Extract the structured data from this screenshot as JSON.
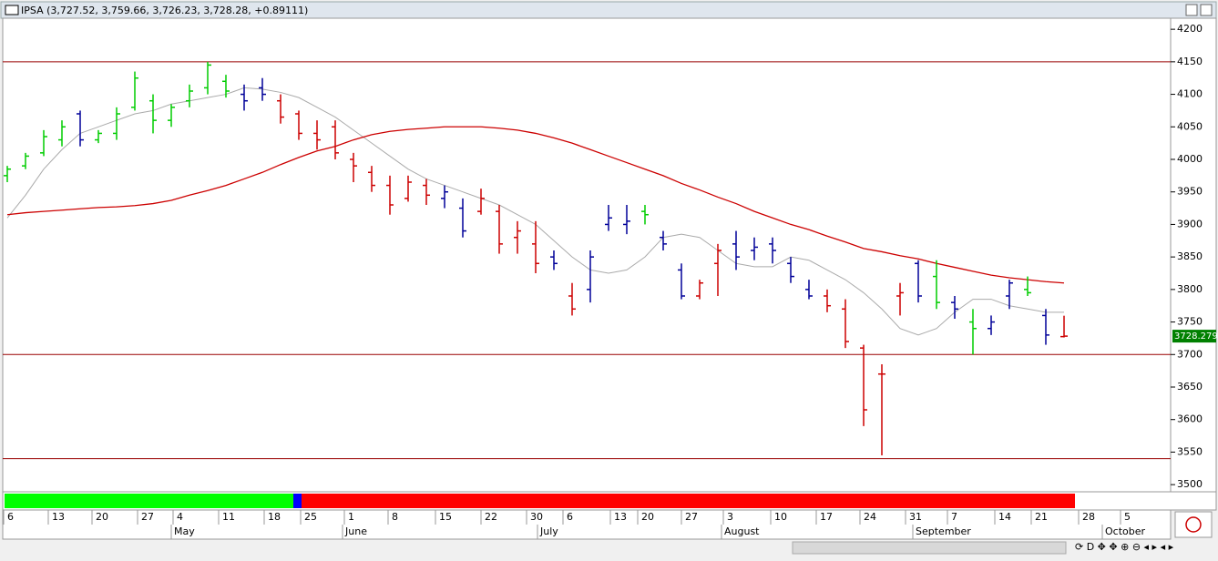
{
  "window_title": "IPSA (3,727.52, 3,759.66, 3,726.23, 3,728.28, +0.89111)",
  "chart_data": {
    "type": "ohlc",
    "open": [
      3975,
      3990,
      4010,
      4030,
      4070,
      4030,
      4040,
      4080,
      4090,
      4060,
      4090,
      4110,
      4120,
      4100,
      4110,
      4090,
      4070,
      4040,
      4050,
      4000,
      3980,
      3960,
      3940,
      3960,
      3940,
      3925,
      3920,
      3920,
      3880,
      3870,
      3850,
      3790,
      3800,
      3900,
      3900,
      3920,
      3880,
      3830,
      3790,
      3840,
      3870,
      3860,
      3870,
      3840,
      3800,
      3790,
      3770,
      3710,
      3670,
      3790,
      3840,
      3820,
      3780,
      3750,
      3740,
      3790,
      3800,
      3760,
      3727.52
    ],
    "high": [
      3990,
      4010,
      4045,
      4060,
      4075,
      4045,
      4080,
      4135,
      4100,
      4085,
      4115,
      4150,
      4130,
      4115,
      4125,
      4100,
      4075,
      4060,
      4060,
      4010,
      3990,
      3975,
      3975,
      3970,
      3960,
      3940,
      3955,
      3930,
      3905,
      3905,
      3860,
      3810,
      3860,
      3930,
      3930,
      3930,
      3890,
      3840,
      3815,
      3870,
      3890,
      3880,
      3880,
      3850,
      3815,
      3800,
      3785,
      3715,
      3685,
      3810,
      3845,
      3845,
      3790,
      3770,
      3760,
      3815,
      3820,
      3770,
      3759.66
    ],
    "low": [
      3965,
      3985,
      4005,
      4020,
      4020,
      4025,
      4030,
      4075,
      4040,
      4050,
      4080,
      4100,
      4095,
      4075,
      4090,
      4055,
      4030,
      4015,
      4000,
      3965,
      3950,
      3915,
      3935,
      3930,
      3925,
      3880,
      3915,
      3855,
      3855,
      3825,
      3830,
      3760,
      3780,
      3890,
      3885,
      3900,
      3860,
      3785,
      3785,
      3790,
      3830,
      3845,
      3840,
      3810,
      3785,
      3765,
      3710,
      3590,
      3545,
      3760,
      3780,
      3770,
      3755,
      3700,
      3730,
      3770,
      3790,
      3715,
      3726.23
    ],
    "close": [
      3985,
      4005,
      4035,
      4050,
      4030,
      4040,
      4070,
      4125,
      4060,
      4080,
      4105,
      4145,
      4105,
      4090,
      4100,
      4065,
      4040,
      4030,
      4010,
      3990,
      3960,
      3930,
      3965,
      3945,
      3950,
      3890,
      3940,
      3870,
      3890,
      3840,
      3840,
      3770,
      3850,
      3910,
      3905,
      3915,
      3870,
      3790,
      3810,
      3860,
      3850,
      3865,
      3860,
      3820,
      3790,
      3775,
      3720,
      3615,
      3670,
      3795,
      3790,
      3780,
      3770,
      3740,
      3750,
      3810,
      3795,
      3730,
      3728.28
    ],
    "colors": [
      "#00cc00",
      "#00cc00",
      "#00cc00",
      "#00cc00",
      "#000099",
      "#00cc00",
      "#00cc00",
      "#00cc00",
      "#00cc00",
      "#00cc00",
      "#00cc00",
      "#00cc00",
      "#00cc00",
      "#000099",
      "#000099",
      "#cc0000",
      "#cc0000",
      "#cc0000",
      "#cc0000",
      "#cc0000",
      "#cc0000",
      "#cc0000",
      "#cc0000",
      "#cc0000",
      "#000099",
      "#000099",
      "#cc0000",
      "#cc0000",
      "#cc0000",
      "#cc0000",
      "#000099",
      "#cc0000",
      "#000099",
      "#000099",
      "#000099",
      "#00cc00",
      "#000099",
      "#000099",
      "#cc0000",
      "#cc0000",
      "#000099",
      "#000099",
      "#000099",
      "#000099",
      "#000099",
      "#cc0000",
      "#cc0000",
      "#cc0000",
      "#cc0000",
      "#cc0000",
      "#000099",
      "#00cc00",
      "#000099",
      "#00cc00",
      "#000099",
      "#000099",
      "#00cc00",
      "#000099",
      "#cc0000"
    ],
    "series": [
      {
        "color": "#aaaaaa",
        "values": [
          3910,
          3945,
          3985,
          4015,
          4040,
          4050,
          4060,
          4070,
          4075,
          4085,
          4090,
          4095,
          4100,
          4110,
          4108,
          4103,
          4095,
          4080,
          4065,
          4045,
          4025,
          4005,
          3985,
          3970,
          3960,
          3950,
          3940,
          3930,
          3915,
          3900,
          3875,
          3850,
          3830,
          3825,
          3830,
          3850,
          3880,
          3885,
          3880,
          3860,
          3840,
          3835,
          3835,
          3850,
          3845,
          3830,
          3815,
          3795,
          3770,
          3740,
          3730,
          3740,
          3765,
          3785,
          3785,
          3775,
          3770,
          3765,
          3765
        ]
      },
      {
        "color": "#cc0000",
        "values": [
          3915,
          3918,
          3920,
          3922,
          3924,
          3926,
          3927,
          3929,
          3932,
          3937,
          3945,
          3952,
          3960,
          3970,
          3980,
          3992,
          4003,
          4013,
          4020,
          4030,
          4038,
          4043,
          4046,
          4048,
          4050,
          4050,
          4050,
          4048,
          4045,
          4040,
          4033,
          4025,
          4015,
          4005,
          3995,
          3985,
          3975,
          3963,
          3953,
          3942,
          3932,
          3920,
          3910,
          3900,
          3892,
          3882,
          3873,
          3863,
          3858,
          3852,
          3847,
          3840,
          3834,
          3828,
          3822,
          3818,
          3815,
          3812,
          3810
        ]
      }
    ],
    "hlines": [
      4150,
      3700,
      3540
    ],
    "last_label": "3728.279",
    "ylim": [
      3489,
      4217
    ],
    "yticks": [
      3500,
      3550,
      3600,
      3650,
      3700,
      3750,
      3800,
      3850,
      3900,
      3950,
      4000,
      4050,
      4100,
      4150,
      4200
    ],
    "xlim": [
      -0.25,
      63.85
    ],
    "xticks": [
      {
        "value": -0.2,
        "label": "6"
      },
      {
        "value": 2.25,
        "label": "13"
      },
      {
        "value": 4.65,
        "label": "20"
      },
      {
        "value": 7.15,
        "label": "27"
      },
      {
        "value": 9.1,
        "label": "4"
      },
      {
        "value": 11.6,
        "label": "11"
      },
      {
        "value": 14.1,
        "label": "18"
      },
      {
        "value": 16.1,
        "label": "25"
      },
      {
        "value": 18.5,
        "label": "1"
      },
      {
        "value": 20.9,
        "label": "8"
      },
      {
        "value": 23.5,
        "label": "15"
      },
      {
        "value": 26,
        "label": "22"
      },
      {
        "value": 28.5,
        "label": "30"
      },
      {
        "value": 30.5,
        "label": "6"
      },
      {
        "value": 33.1,
        "label": "13"
      },
      {
        "value": 34.6,
        "label": "20"
      },
      {
        "value": 37,
        "label": "27"
      },
      {
        "value": 39.3,
        "label": "3"
      },
      {
        "value": 41.9,
        "label": "10"
      },
      {
        "value": 44.4,
        "label": "17"
      },
      {
        "value": 46.8,
        "label": "24"
      },
      {
        "value": 49.3,
        "label": "31"
      },
      {
        "value": 51.6,
        "label": "7"
      },
      {
        "value": 54.2,
        "label": "14"
      },
      {
        "value": 56.2,
        "label": "21"
      },
      {
        "value": 58.8,
        "label": "28"
      },
      {
        "value": 61.1,
        "label": "5"
      }
    ],
    "months": [
      {
        "value": 9,
        "label": "May"
      },
      {
        "value": 18.4,
        "label": "June"
      },
      {
        "value": 29.1,
        "label": "July"
      },
      {
        "value": 39.2,
        "label": "August"
      },
      {
        "value": 49.7,
        "label": "September"
      },
      {
        "value": 60.1,
        "label": "October"
      }
    ]
  }
}
